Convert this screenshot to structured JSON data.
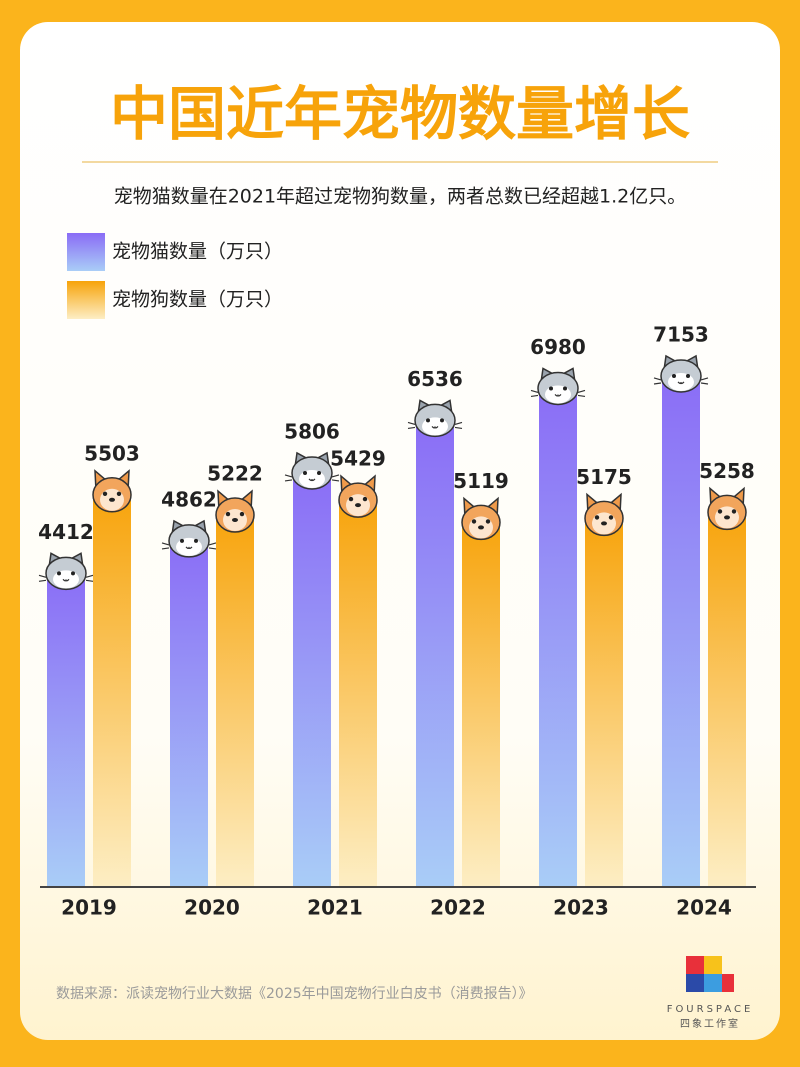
{
  "chart_data": {
    "type": "bar",
    "title": "中国近年宠物数量增长",
    "subtitle": "宠物猫数量在2021年超过宠物狗数量，两者总数已经超越1.2亿只。",
    "categories": [
      "2019",
      "2020",
      "2021",
      "2022",
      "2023",
      "2024"
    ],
    "series": [
      {
        "name": "宠物猫数量（万只）",
        "color": "#8a6cf6",
        "values": [
          4412,
          4862,
          5806,
          6536,
          6980,
          7153
        ]
      },
      {
        "name": "宠物狗数量（万只）",
        "color": "#f7a30a",
        "values": [
          5503,
          5222,
          5429,
          5119,
          5175,
          5258
        ]
      }
    ],
    "source": "数据来源：派读宠物行业大数据《2025年中国宠物行业白皮书（消费报告）》",
    "logo_text": "FOURSPACE",
    "logo_subtext": "四象工作室"
  }
}
